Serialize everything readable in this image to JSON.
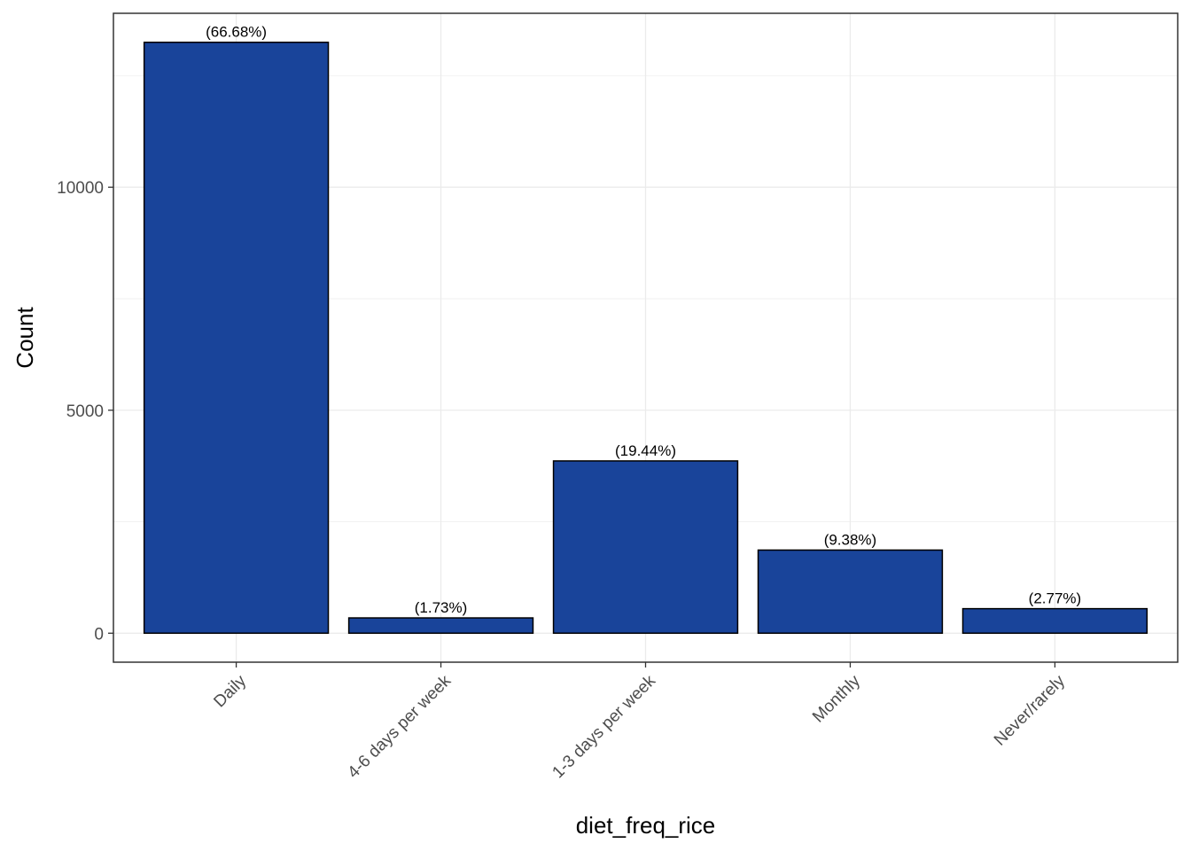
{
  "chart_data": {
    "type": "bar",
    "title": "",
    "xlabel": "diet_freq_rice",
    "ylabel": "Count",
    "categories": [
      "Daily",
      "4-6 days per week",
      "1-3 days per week",
      "Monthly",
      "Never/rarely"
    ],
    "values": [
      13250,
      343,
      3863,
      1864,
      550
    ],
    "data_labels": [
      "(66.68%)",
      "(1.73%)",
      "(19.44%)",
      "(9.38%)",
      "(2.77%)"
    ],
    "ylim": [
      -650,
      13900
    ],
    "yticks": [
      0,
      5000,
      10000
    ],
    "ytick_labels": [
      "0",
      "5000",
      "10000"
    ],
    "grid": true,
    "legend": "none",
    "colors": {
      "bar_fill": "#19449A",
      "bar_stroke": "#000000",
      "panel_border": "#333333",
      "grid_major": "#ebebeb",
      "grid_minor": "#f2f2f2",
      "tick_text": "#4d4d4d"
    }
  }
}
